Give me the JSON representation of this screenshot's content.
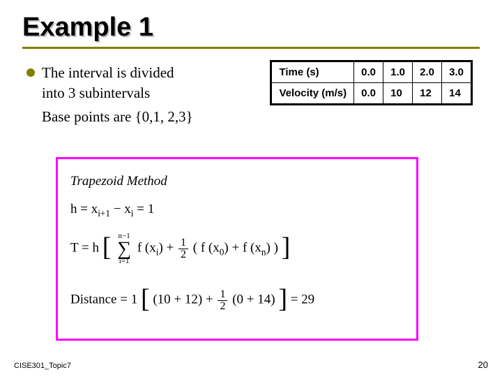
{
  "slide": {
    "title": "Example 1",
    "title_color": "#000000",
    "title_shadow": "#c0c0c0",
    "rule_color": "#808000",
    "footer_left": "CISE301_Topic7",
    "page_number": "20"
  },
  "bullet": {
    "line1": "The interval is divided",
    "line2": "into 3 subintervals",
    "basepoints_label": "Base points are",
    "basepoints_set": "{0,1, 2,3}",
    "bullet_color": "#808000"
  },
  "table": {
    "border_color": "#000000",
    "rows": [
      {
        "label": "Time (s)",
        "v0": "0.0",
        "v1": "1.0",
        "v2": "2.0",
        "v3": "3.0"
      },
      {
        "label": "Velocity (m/s)",
        "v0": "0.0",
        "v1": "10",
        "v2": "12",
        "v3": "14"
      }
    ]
  },
  "method": {
    "box_border_color": "#ff00ff",
    "title": "Trapezoid   Method",
    "h_eq_left": "h = x",
    "h_sub1": "i+1",
    "h_mid": " − x",
    "h_sub2": "i",
    "h_right": " = 1",
    "T_label": "T  = h",
    "sum_top": "n−1",
    "sum_bot": "i=1",
    "fx_i": "f (x",
    "xi_sub": "i",
    "plus": ") + ",
    "half_n": "1",
    "half_d": "2",
    "fx0_open": "( f (x",
    "x0_sub": "0",
    "fx0_close": ") + f (x",
    "xn_sub": "n",
    "fxn_close": ") )",
    "dist_label": "Distance = 1",
    "dist_inner_a": "(10 + 12) + ",
    "dist_inner_b": "(0 + 14)",
    "dist_result": " = 29"
  }
}
